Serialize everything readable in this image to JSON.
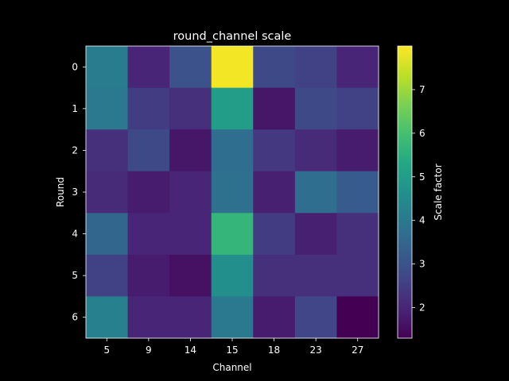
{
  "chart_data": {
    "type": "heatmap",
    "title": "round_channel scale",
    "xlabel": "Channel",
    "ylabel": "Round",
    "x_categories": [
      "5",
      "9",
      "14",
      "15",
      "18",
      "23",
      "27"
    ],
    "y_categories": [
      "0",
      "1",
      "2",
      "3",
      "4",
      "5",
      "6"
    ],
    "values": [
      [
        4.1,
        2.0,
        3.0,
        7.9,
        2.8,
        2.6,
        2.0
      ],
      [
        4.0,
        2.5,
        2.2,
        5.0,
        1.7,
        2.8,
        2.6
      ],
      [
        2.2,
        2.8,
        1.7,
        3.7,
        2.4,
        2.1,
        1.8
      ],
      [
        2.1,
        1.8,
        2.0,
        3.8,
        1.9,
        3.7,
        3.2
      ],
      [
        3.5,
        2.0,
        2.0,
        5.7,
        2.5,
        1.9,
        2.2
      ],
      [
        2.6,
        1.8,
        1.6,
        4.6,
        2.2,
        2.2,
        2.2
      ],
      [
        4.2,
        2.0,
        2.0,
        4.0,
        1.8,
        2.7,
        1.3
      ]
    ],
    "colormap": "viridis",
    "colorbar": {
      "label": "Scale factor",
      "min": 1.3,
      "max": 8.0,
      "ticks": [
        "2",
        "3",
        "4",
        "5",
        "6",
        "7"
      ]
    }
  }
}
